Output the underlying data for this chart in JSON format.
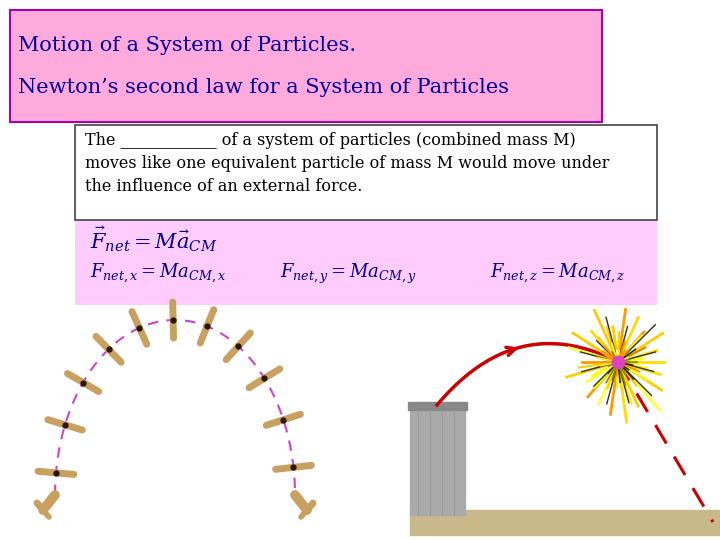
{
  "bg_color": "#ffffff",
  "title_box_color": "#ffaadd",
  "title_box_edge": "#aa00aa",
  "title1": "Motion of a System of Particles.",
  "title2": "Newton’s second law for a System of Particles",
  "text_box_color": "#ffffff",
  "text_box_edge": "#444444",
  "text_line1": "The ____________ of a system of particles (combined mass M)",
  "text_line2": "moves like one equivalent particle of mass M would move under",
  "text_line3": "the influence of an external force.",
  "formula_box_color": "#ffccff",
  "eq1": "$\\vec{F}_{net} = M\\vec{a}_{CM}$",
  "eq2x": "$F_{net,x} = Ma_{CM,x}$",
  "eq2y": "$F_{net,y} = Ma_{CM,y}$",
  "eq2z": "$F_{net,z} = Ma_{CM,z}$",
  "font_color": "#000099",
  "title_fontsize": 15,
  "text_fontsize": 11.5,
  "formula_fontsize": 15,
  "formula2_fontsize": 13
}
